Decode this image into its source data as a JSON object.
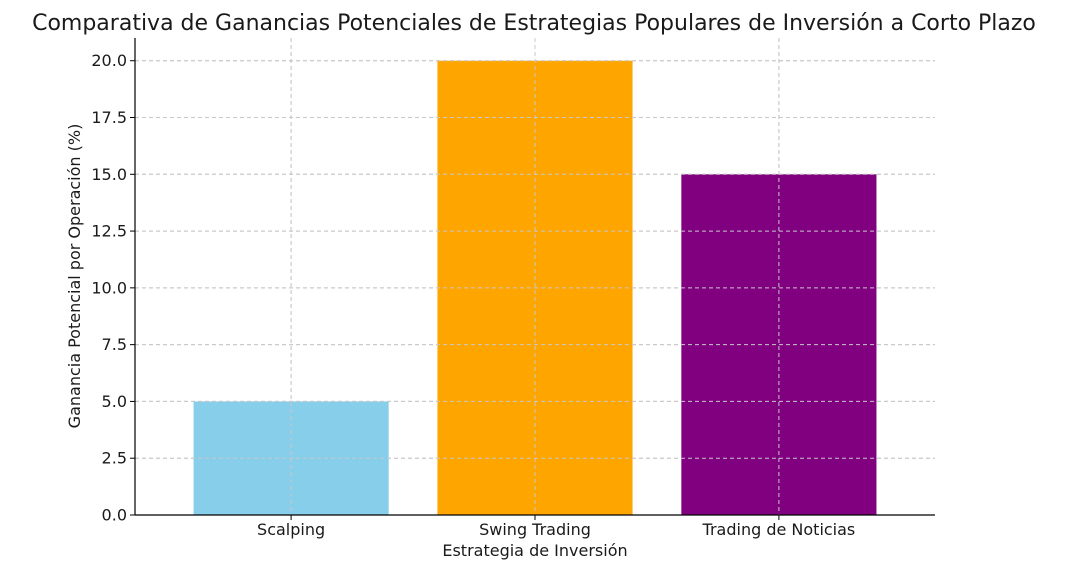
{
  "chart_data": {
    "type": "bar",
    "title": "Comparativa de Ganancias Potenciales de Estrategias Populares de Inversión a Corto Plazo",
    "xlabel": "Estrategia de Inversión",
    "ylabel": "Ganancia Potencial por Operación (%)",
    "categories": [
      "Scalping",
      "Swing Trading",
      "Trading de Noticias"
    ],
    "values": [
      5,
      20,
      15
    ],
    "colors": [
      "#87CEEB",
      "#FFA500",
      "#800080"
    ],
    "ylim": [
      0,
      21
    ],
    "yticks": [
      0.0,
      2.5,
      5.0,
      7.5,
      10.0,
      12.5,
      15.0,
      17.5,
      20.0
    ],
    "ytick_labels": [
      "0.0",
      "2.5",
      "5.0",
      "7.5",
      "10.0",
      "12.5",
      "15.0",
      "17.5",
      "20.0"
    ],
    "grid": true,
    "legend": "none"
  }
}
